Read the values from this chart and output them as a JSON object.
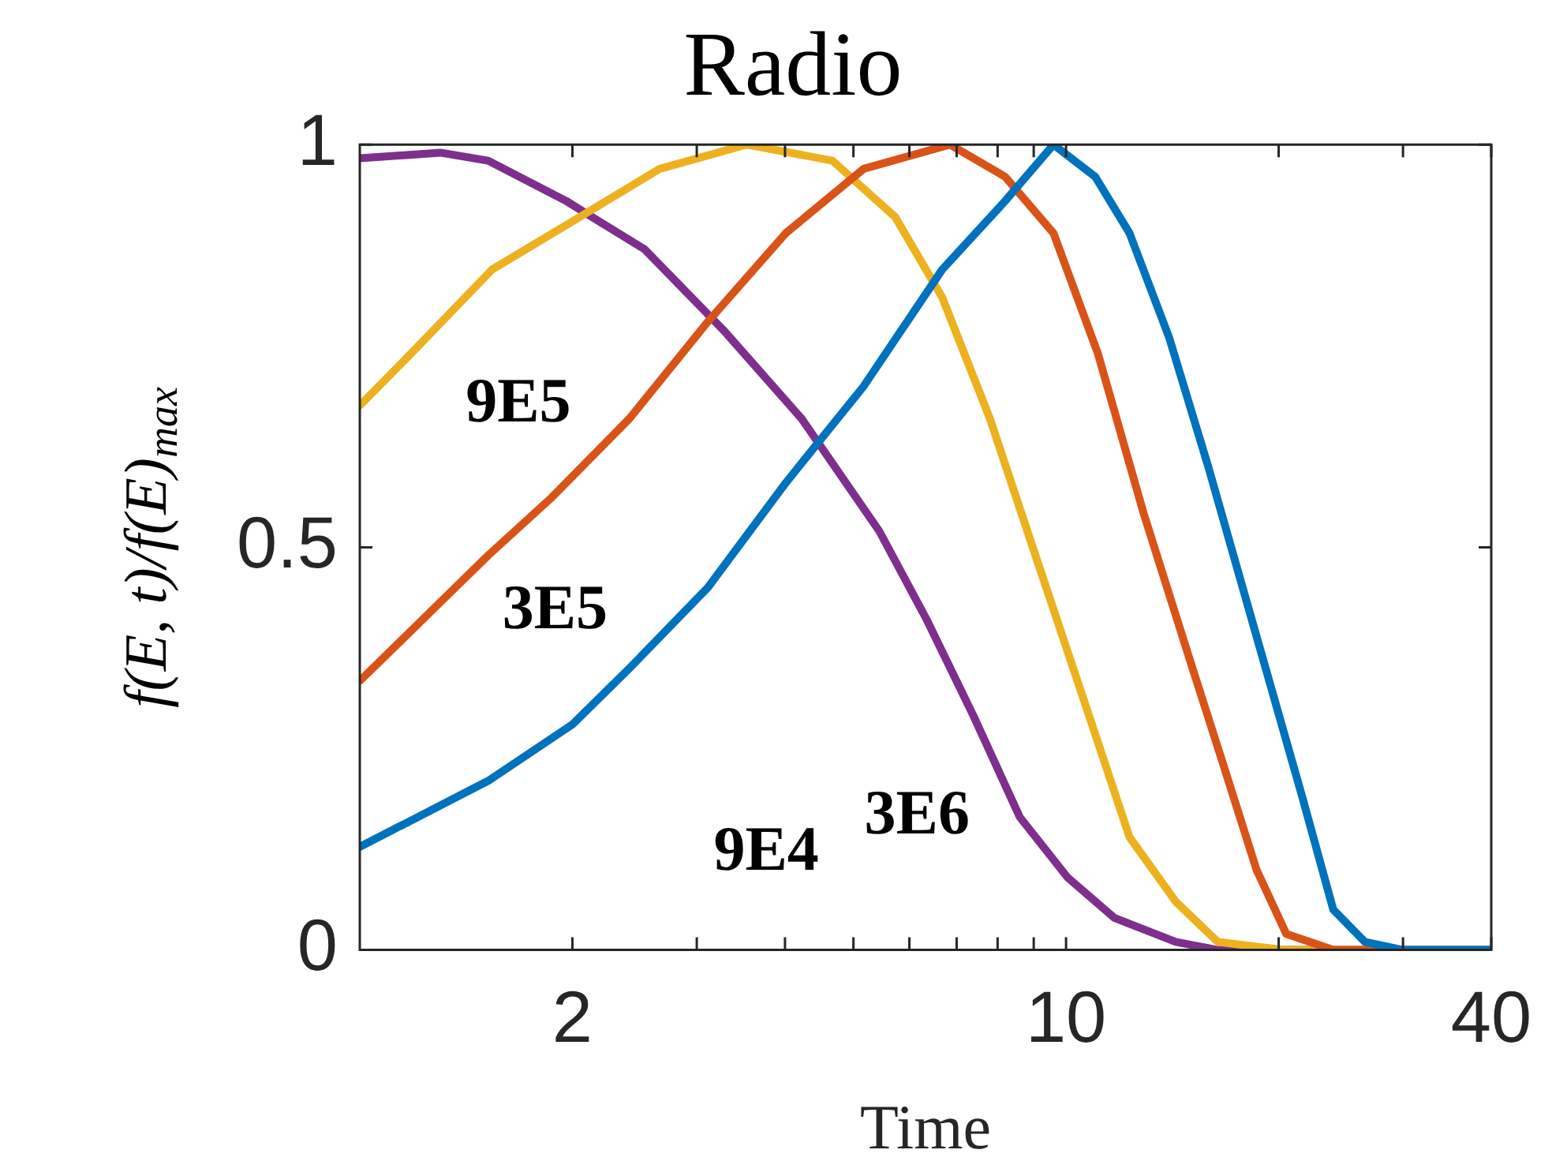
{
  "chart_data": {
    "type": "line",
    "title": "Radio",
    "xlabel": "Time",
    "ylabel": "f(E, t)/f(E)$_{max}$",
    "log": "x",
    "xlim": [
      1,
      40
    ],
    "xticks": [
      2,
      {
        "value": 3,
        "label": null
      },
      {
        "value": 4,
        "label": null
      },
      {
        "value": 5,
        "label": null
      },
      {
        "value": 6,
        "label": null
      },
      {
        "value": 7,
        "label": null
      },
      {
        "value": 8,
        "label": null
      },
      {
        "value": 9,
        "label": null
      },
      10,
      {
        "value": 20,
        "label": null
      },
      {
        "value": 30,
        "label": null
      },
      40
    ],
    "ylim": [
      0,
      1
    ],
    "yticks": [
      0,
      0.5,
      1
    ],
    "grid": false,
    "legend": false,
    "marker": "none",
    "line_style": "solid",
    "series": [
      {
        "name": "9E4",
        "color": "#0072bd",
        "x": [
          1,
          1.52,
          2,
          2.41,
          3.11,
          4.01,
          5.17,
          6.68,
          8.2,
          9.6,
          11.0,
          12.3,
          14.0,
          15.9,
          18.6,
          21.6,
          23.9,
          26.5,
          30,
          40
        ],
        "values": [
          0.128,
          0.21,
          0.28,
          0.35,
          0.45,
          0.58,
          0.7,
          0.845,
          0.93,
          1.0,
          0.96,
          0.89,
          0.76,
          0.6,
          0.39,
          0.19,
          0.05,
          0.01,
          0,
          0
        ]
      },
      {
        "name": "3E5",
        "color": "#d95319",
        "x": [
          1,
          1.52,
          1.86,
          2.41,
          3.11,
          4.01,
          5.17,
          6.85,
          8.2,
          9.6,
          11.1,
          12.9,
          15.1,
          16.7,
          18.6,
          20.5,
          23.9,
          40
        ],
        "values": [
          0.334,
          0.49,
          0.56,
          0.66,
          0.78,
          0.89,
          0.97,
          1.0,
          0.96,
          0.89,
          0.74,
          0.54,
          0.35,
          0.23,
          0.1,
          0.02,
          0,
          0
        ]
      },
      {
        "name": "9E5",
        "color": "#edb120",
        "x": [
          1,
          1.18,
          1.54,
          1.96,
          2.66,
          3.53,
          4.67,
          5.73,
          6.68,
          7.8,
          9.05,
          10.6,
          12.3,
          14.3,
          16.4,
          18.6,
          20.5,
          40
        ],
        "values": [
          0.676,
          0.74,
          0.845,
          0.9,
          0.97,
          1.0,
          0.98,
          0.91,
          0.81,
          0.66,
          0.49,
          0.31,
          0.14,
          0.06,
          0.01,
          0.004,
          0,
          0
        ]
      },
      {
        "name": "3E6",
        "color": "#7e2f8e",
        "x": [
          1,
          1.3,
          1.52,
          1.96,
          2.53,
          3.27,
          4.22,
          5.44,
          6.35,
          7.4,
          8.6,
          10.05,
          11.7,
          14.3,
          16.4,
          40
        ],
        "values": [
          0.983,
          0.99,
          0.98,
          0.93,
          0.87,
          0.77,
          0.66,
          0.52,
          0.41,
          0.29,
          0.165,
          0.09,
          0.04,
          0.01,
          0,
          0
        ]
      }
    ]
  }
}
